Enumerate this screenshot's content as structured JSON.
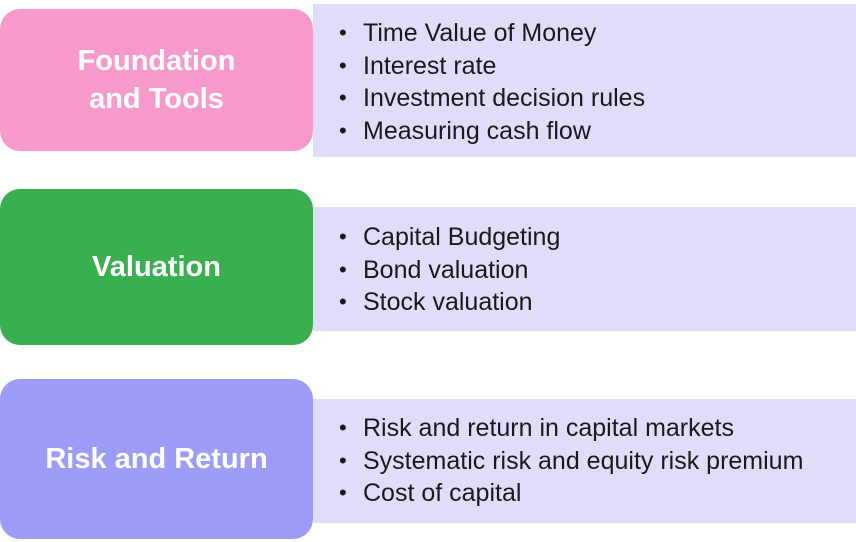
{
  "colors": {
    "foundation": "#f79acb",
    "valuation": "#3aaf4f",
    "risk": "#9e9cf9",
    "panel": "#e0ddfa"
  },
  "rows": [
    {
      "title_lines": [
        "Foundation",
        "and Tools"
      ],
      "items": [
        "Time Value of Money",
        "Interest rate",
        "Investment decision rules",
        "Measuring cash flow"
      ]
    },
    {
      "title_lines": [
        "Valuation"
      ],
      "items": [
        "Capital Budgeting",
        "Bond valuation",
        "Stock valuation"
      ]
    },
    {
      "title_lines": [
        "Risk and Return"
      ],
      "items": [
        "Risk and return in capital markets",
        "Systematic risk and equity risk premium",
        "Cost of capital"
      ]
    }
  ]
}
